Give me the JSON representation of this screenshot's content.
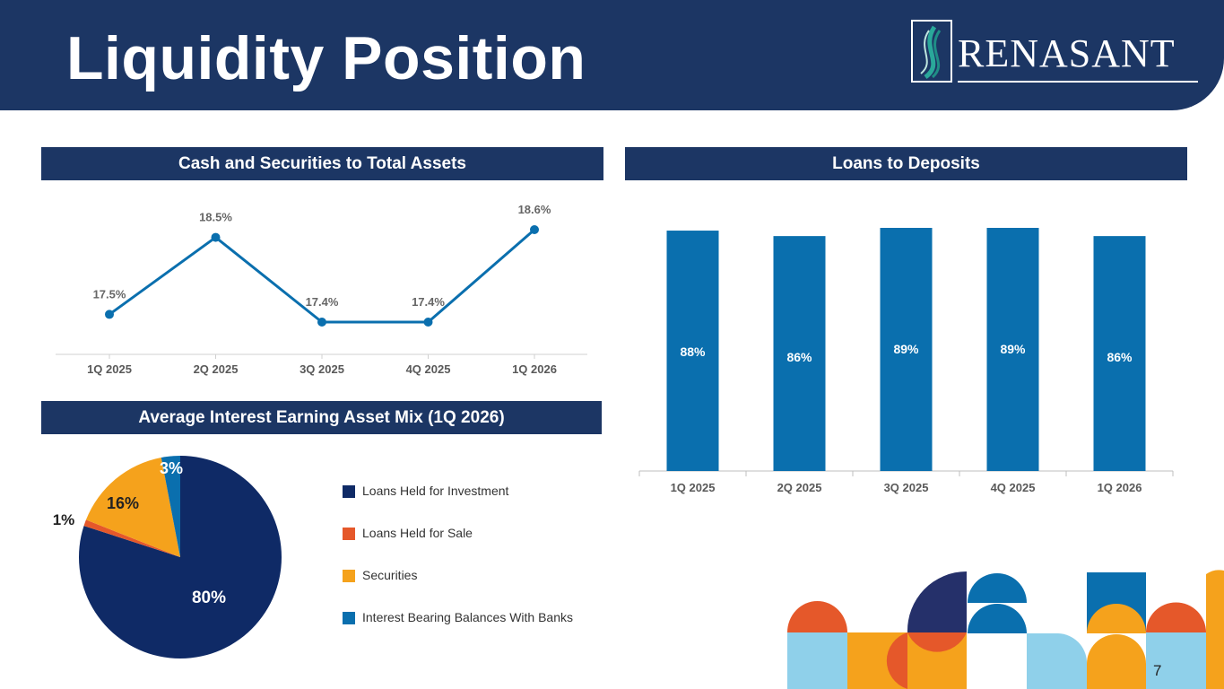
{
  "header": {
    "title": "Liquidity Position",
    "logo_text": "RENASANT"
  },
  "page_number": "7",
  "sections": {
    "cash_title": "Cash and Securities to Total Assets",
    "loans_title": "Loans to Deposits",
    "mix_title": "Average Interest Earning Asset Mix (1Q 2026)"
  },
  "colors": {
    "navy": "#1c3664",
    "blue": "#0a6fae",
    "dark_navy": "#0f2a66",
    "orange": "#e5582a",
    "gold": "#f5a21c",
    "light_blue": "#8fd0ea"
  },
  "chart_data": [
    {
      "type": "line",
      "title": "Cash and Securities to Total Assets",
      "categories": [
        "1Q 2025",
        "2Q 2025",
        "3Q 2025",
        "4Q 2025",
        "1Q 2026"
      ],
      "values": [
        17.5,
        18.5,
        17.4,
        17.4,
        18.6
      ],
      "data_labels": [
        "17.5%",
        "18.5%",
        "17.4%",
        "17.4%",
        "18.6%"
      ],
      "series_color": "#0a6fae",
      "grid": false
    },
    {
      "type": "bar",
      "title": "Loans to Deposits",
      "categories": [
        "1Q 2025",
        "2Q 2025",
        "3Q 2025",
        "4Q 2025",
        "1Q 2026"
      ],
      "values": [
        88,
        86,
        89,
        89,
        86
      ],
      "data_labels": [
        "88%",
        "86%",
        "89%",
        "89%",
        "86%"
      ],
      "series_color": "#0a6fae",
      "grid": false
    },
    {
      "type": "pie",
      "title": "Average Interest Earning Asset Mix (1Q 2026)",
      "slices": [
        {
          "name": "Loans Held for Investment",
          "value": 80,
          "label": "80%",
          "color": "#0f2a66"
        },
        {
          "name": "Loans Held for Sale",
          "value": 1,
          "label": "1%",
          "color": "#e5582a"
        },
        {
          "name": "Securities",
          "value": 16,
          "label": "16%",
          "color": "#f5a21c"
        },
        {
          "name": "Interest Bearing Balances With Banks",
          "value": 3,
          "label": "3%",
          "color": "#0a6fae"
        }
      ],
      "legend_placement": "right"
    }
  ]
}
